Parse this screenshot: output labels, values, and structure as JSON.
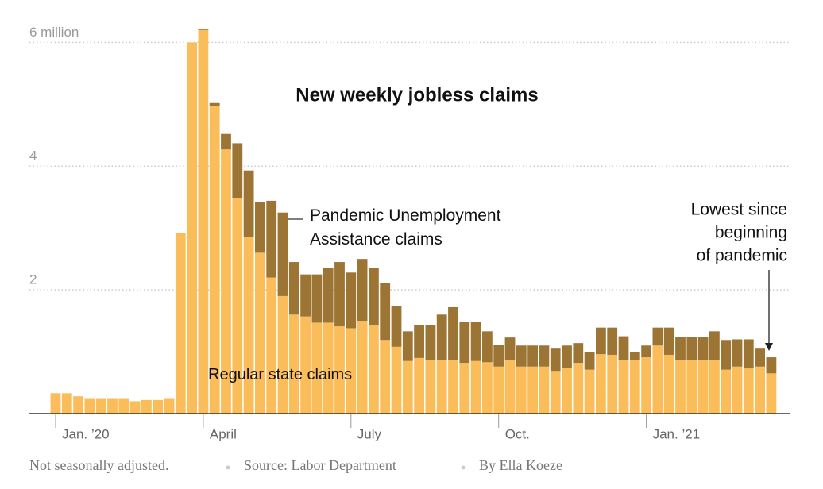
{
  "chart_data": {
    "type": "stacked_bar",
    "title": "New weekly jobless claims",
    "categories": [
      "Jan. ’20",
      null,
      null,
      null,
      null,
      null,
      null,
      null,
      null,
      null,
      null,
      null,
      null,
      "April",
      null,
      null,
      null,
      null,
      null,
      null,
      null,
      null,
      null,
      null,
      null,
      null,
      "July",
      null,
      null,
      null,
      null,
      null,
      null,
      null,
      null,
      null,
      null,
      null,
      null,
      "Oct.",
      null,
      null,
      null,
      null,
      null,
      null,
      null,
      null,
      null,
      null,
      null,
      null,
      "Jan. ’21",
      null,
      null,
      null,
      null,
      null,
      null,
      null,
      null,
      null,
      null,
      null
    ],
    "series": [
      {
        "name": "Regular state claims",
        "color": "#fbbd59",
        "values": [
          0.33,
          0.33,
          0.28,
          0.25,
          0.25,
          0.25,
          0.25,
          0.2,
          0.22,
          0.22,
          0.25,
          2.92,
          6.0,
          6.2,
          4.97,
          4.27,
          3.49,
          2.85,
          2.6,
          2.2,
          1.9,
          1.6,
          1.57,
          1.47,
          1.47,
          1.41,
          1.38,
          1.5,
          1.43,
          1.19,
          1.08,
          0.85,
          0.9,
          0.86,
          0.86,
          0.86,
          0.82,
          0.85,
          0.83,
          0.76,
          0.86,
          0.76,
          0.76,
          0.76,
          0.69,
          0.74,
          0.82,
          0.71,
          0.96,
          0.95,
          0.86,
          0.86,
          0.91,
          1.1,
          0.95,
          0.86,
          0.86,
          0.86,
          0.86,
          0.71,
          0.76,
          0.73,
          0.76,
          0.65
        ]
      },
      {
        "name": "Pandemic Unemployment Assistance claims",
        "color": "#9c7434",
        "values": [
          0,
          0,
          0,
          0,
          0,
          0,
          0,
          0,
          0,
          0,
          0,
          0,
          0,
          0.02,
          0.05,
          0.25,
          0.88,
          1.08,
          0.82,
          1.24,
          1.35,
          0.85,
          0.68,
          0.78,
          0.89,
          1.04,
          0.9,
          1.0,
          0.93,
          0.92,
          0.66,
          0.48,
          0.53,
          0.57,
          0.74,
          0.86,
          0.66,
          0.63,
          0.5,
          0.35,
          0.37,
          0.34,
          0.34,
          0.34,
          0.36,
          0.36,
          0.32,
          0.29,
          0.43,
          0.44,
          0.39,
          0.14,
          0.19,
          0.29,
          0.44,
          0.38,
          0.38,
          0.38,
          0.47,
          0.48,
          0.44,
          0.47,
          0.29,
          0.26
        ]
      }
    ],
    "ylim": [
      0,
      6.3
    ],
    "yticks": [
      2,
      4,
      {
        "value": 6,
        "label": "6 million"
      }
    ],
    "grid": true,
    "annotations": [
      {
        "text": [
          "Lowest since",
          "beginning",
          "of pandemic"
        ]
      }
    ],
    "footer": [
      "Not seasonally adjusted.",
      "Source: Labor Department",
      "By Ella Koeze"
    ]
  }
}
